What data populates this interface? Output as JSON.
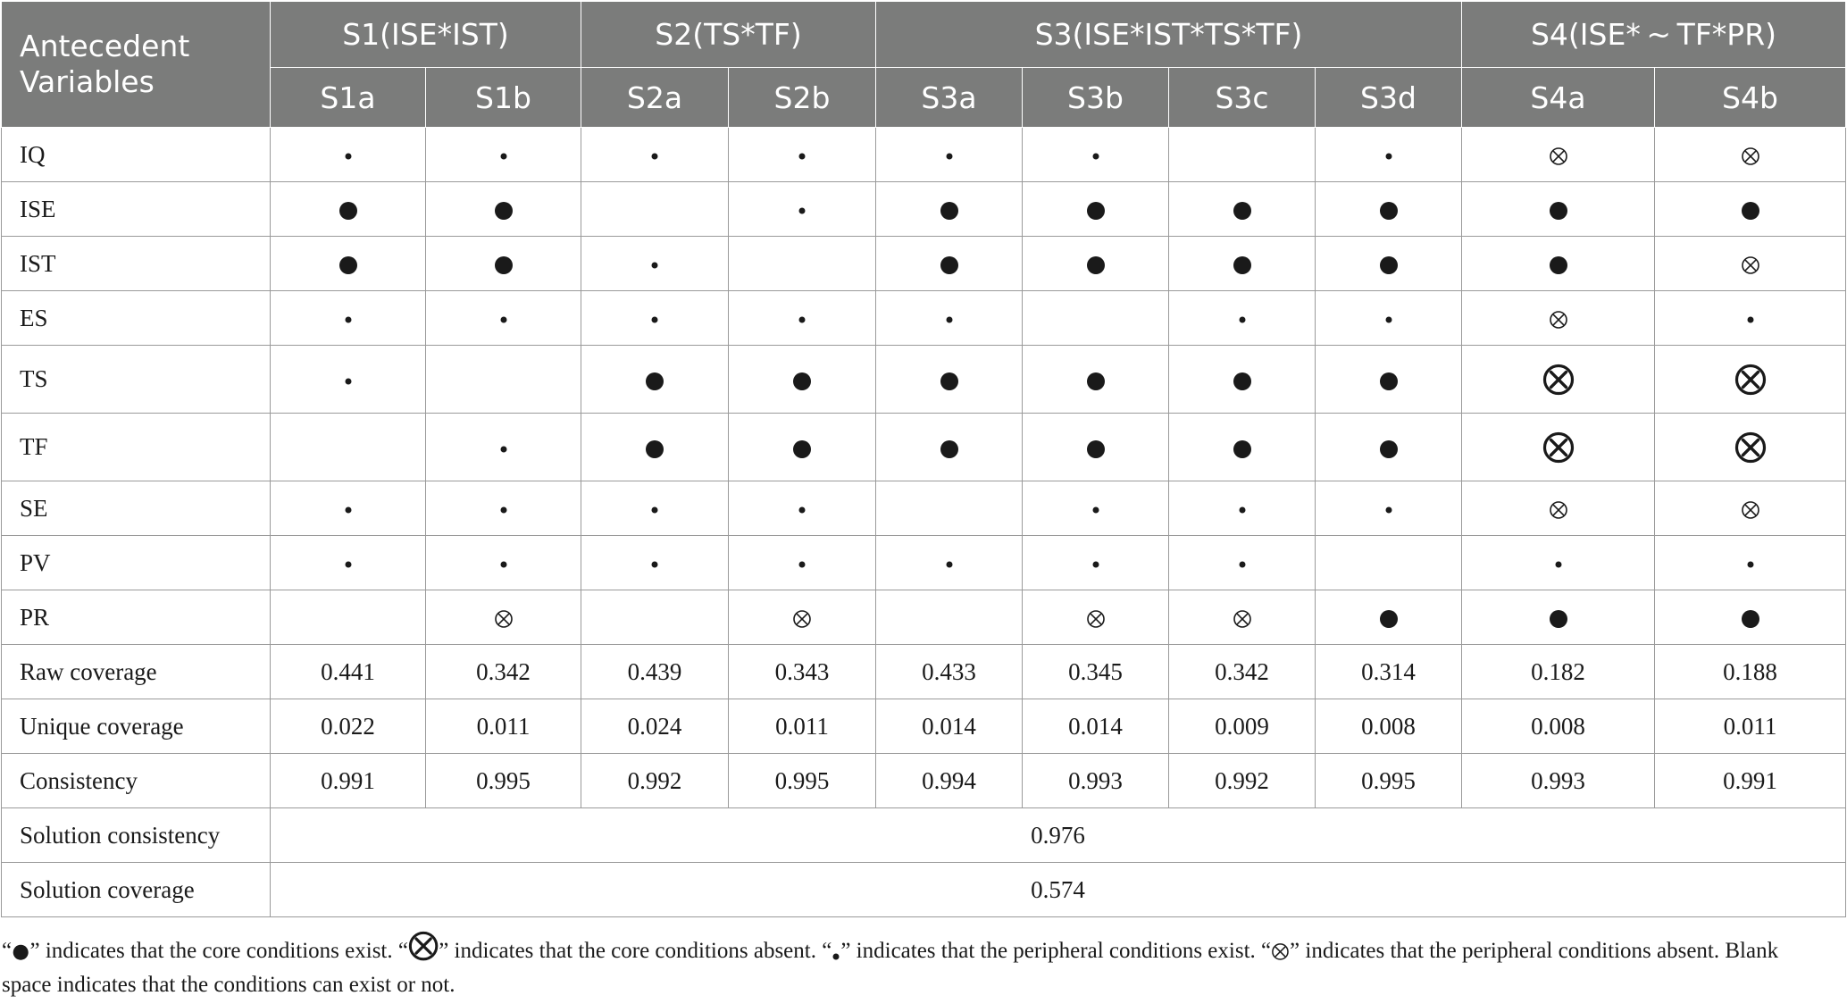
{
  "table": {
    "corner_label": "Antecedent Variables",
    "groups": [
      {
        "label": "S1(ISE*IST)",
        "subs": [
          "S1a",
          "S1b"
        ]
      },
      {
        "label": "S2(TS*TF)",
        "subs": [
          "S2a",
          "S2b"
        ]
      },
      {
        "label": "S3(ISE*IST*TS*TF)",
        "subs": [
          "S3a",
          "S3b",
          "S3c",
          "S3d"
        ]
      },
      {
        "label": "S4(ISE* ~ TF*PR)",
        "subs": [
          "S4a",
          "S4b"
        ]
      }
    ],
    "condition_rows": [
      {
        "label": "IQ",
        "cells": [
          "pe",
          "pe",
          "pe",
          "pe",
          "pe",
          "pe",
          "",
          "pe",
          "pa",
          "pa"
        ]
      },
      {
        "label": "ISE",
        "cells": [
          "ce",
          "ce",
          "",
          "pe",
          "ce",
          "ce",
          "ce",
          "ce",
          "ce",
          "ce"
        ]
      },
      {
        "label": "IST",
        "cells": [
          "ce",
          "ce",
          "pe",
          "",
          "ce",
          "ce",
          "ce",
          "ce",
          "ce",
          "pa"
        ]
      },
      {
        "label": "ES",
        "cells": [
          "pe",
          "pe",
          "pe",
          "pe",
          "pe",
          "",
          "pe",
          "pe",
          "pa",
          "pe"
        ]
      },
      {
        "label": "TS",
        "cells": [
          "pe",
          "",
          "ce",
          "ce",
          "ce",
          "ce",
          "ce",
          "ce",
          "ca",
          "ca"
        ]
      },
      {
        "label": "TF",
        "cells": [
          "",
          "pe",
          "ce",
          "ce",
          "ce",
          "ce",
          "ce",
          "ce",
          "ca",
          "ca"
        ]
      },
      {
        "label": "SE",
        "cells": [
          "pe",
          "pe",
          "pe",
          "pe",
          "",
          "pe",
          "pe",
          "pe",
          "pa",
          "pa"
        ]
      },
      {
        "label": "PV",
        "cells": [
          "pe",
          "pe",
          "pe",
          "pe",
          "pe",
          "pe",
          "pe",
          "",
          "pe",
          "pe"
        ]
      },
      {
        "label": "PR",
        "cells": [
          "",
          "pa",
          "",
          "pa",
          "",
          "pa",
          "pa",
          "ce",
          "ce",
          "ce"
        ]
      }
    ],
    "metric_rows": [
      {
        "label": "Raw coverage",
        "cells": [
          "0.441",
          "0.342",
          "0.439",
          "0.343",
          "0.433",
          "0.345",
          "0.342",
          "0.314",
          "0.182",
          "0.188"
        ]
      },
      {
        "label": "Unique coverage",
        "cells": [
          "0.022",
          "0.011",
          "0.024",
          "0.011",
          "0.014",
          "0.014",
          "0.009",
          "0.008",
          "0.008",
          "0.011"
        ]
      },
      {
        "label": "Consistency",
        "cells": [
          "0.991",
          "0.995",
          "0.992",
          "0.995",
          "0.994",
          "0.993",
          "0.992",
          "0.995",
          "0.993",
          "0.991"
        ]
      }
    ],
    "solution_rows": [
      {
        "label": "Solution consistency",
        "value": "0.976"
      },
      {
        "label": "Solution coverage",
        "value": "0.574"
      }
    ]
  },
  "legend": {
    "icons": {
      "ce": "core-exist-icon",
      "ca": "core-absent-icon",
      "pe": "peripheral-exist-icon",
      "pa": "peripheral-absent-icon"
    },
    "core_exist_text": "“●” indicates that the core conditions exist.",
    "core_absent_text": "“⊗” indicates that the core conditions absent.",
    "peripheral_exist_text": "“•” indicates that the peripheral conditions exist.",
    "peripheral_absent_text": "“⊗” indicates that the peripheral conditions absent.",
    "blank_text": "Blank space indicates that the conditions can exist or not."
  },
  "colors": {
    "header_bg": "#7b7c7b",
    "header_text": "#ffffff",
    "symbol": "#1a1a1a",
    "grid": "#9a9a9a"
  }
}
